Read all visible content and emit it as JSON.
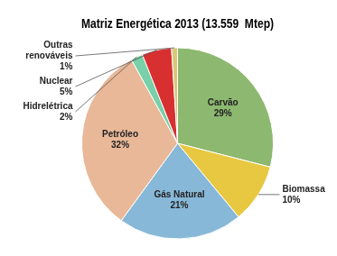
{
  "chart_data": {
    "type": "pie",
    "title": "Matriz Energética 2013 (13.559  Mtep)",
    "categories": [
      "Carvão",
      "Biomassa",
      "Gás Natural",
      "Petróleo",
      "Hidrelétrica",
      "Nuclear",
      "Outras\nrenováveis"
    ],
    "values": [
      29,
      10,
      21,
      32,
      2,
      5,
      1
    ],
    "value_labels": [
      "29%",
      "10%",
      "21%",
      "32%",
      "2%",
      "5%",
      "1%"
    ],
    "colors": [
      "#8db870",
      "#e8c840",
      "#88b8d8",
      "#e8b898",
      "#78d0a8",
      "#d83030",
      "#d8c878"
    ],
    "data_labels": true,
    "legend": false
  }
}
